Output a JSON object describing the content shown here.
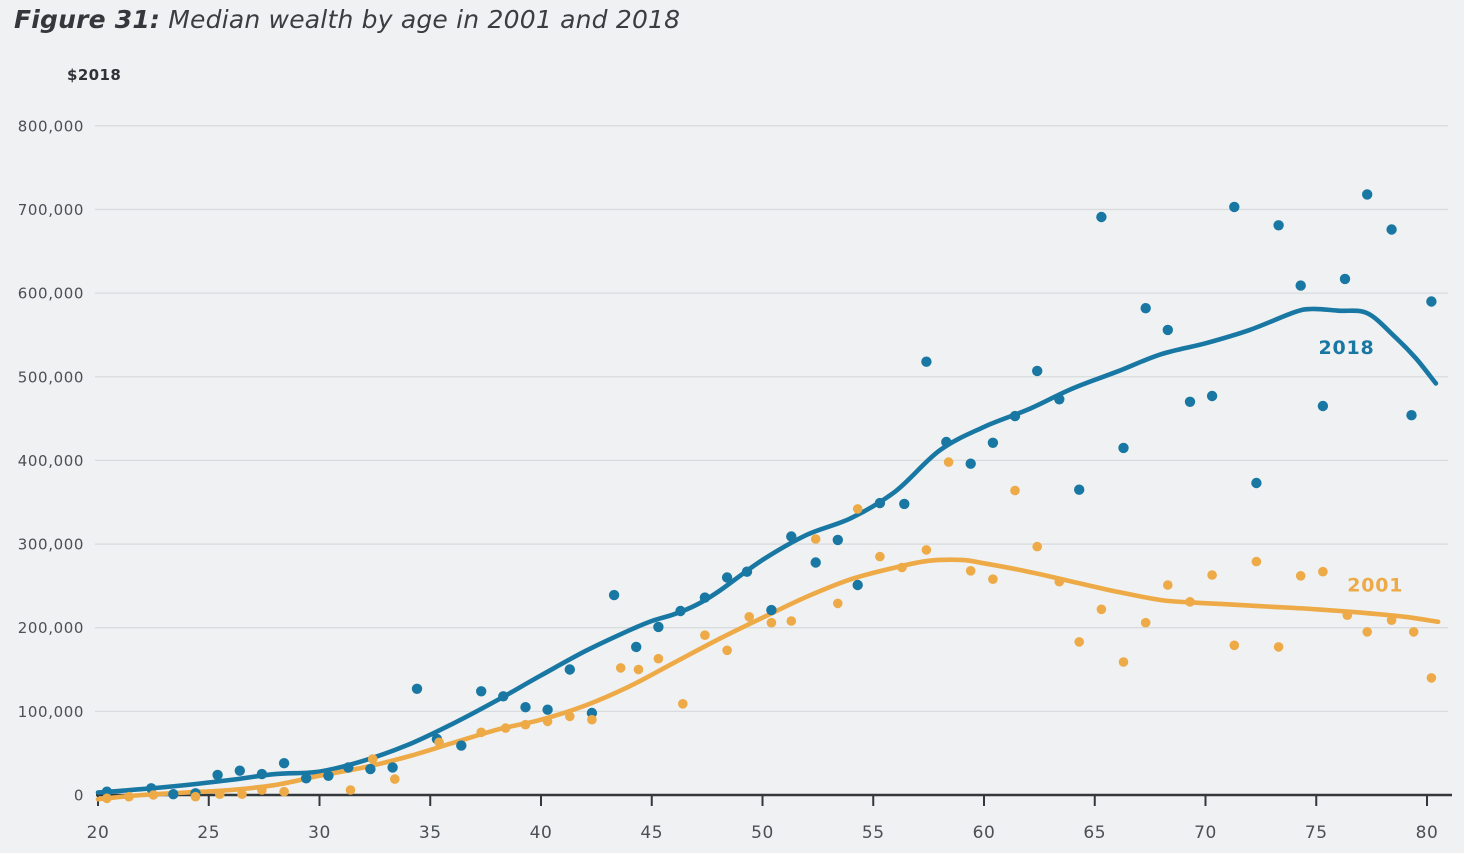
{
  "page": {
    "title_prefix": "Figure 31:",
    "title_rest": " Median wealth by age in 2001 and 2018",
    "y_unit_label": "$2018",
    "background": "#eff1f2"
  },
  "chart_data": {
    "type": "scatter",
    "title": "Figure 31: Median wealth by age in 2001 and 2018",
    "xlabel": "",
    "ylabel": "$2018",
    "xlim": [
      19.5,
      81.7
    ],
    "ylim": [
      0,
      800000
    ],
    "x_ticks": [
      20,
      25,
      30,
      35,
      40,
      45,
      50,
      55,
      60,
      65,
      70,
      75,
      80
    ],
    "y_ticks": [
      0,
      100000,
      200000,
      300000,
      400000,
      500000,
      600000,
      700000,
      800000
    ],
    "grid": "horizontal-only",
    "legend_position": "inline-labels",
    "colors": {
      "s2018": "#1878a3",
      "s2001": "#edaa47",
      "grid": "#d9dcde",
      "axis": "#33383d",
      "tick_text": "#4b5056"
    },
    "series": [
      {
        "name": "2018",
        "color": "#1878a3",
        "label_anchor": {
          "age": 75.1,
          "value": 527000
        },
        "points": [
          [
            20.4,
            4000
          ],
          [
            22.4,
            8000
          ],
          [
            23.4,
            1000
          ],
          [
            24.4,
            2000
          ],
          [
            25.4,
            24000
          ],
          [
            26.4,
            29000
          ],
          [
            27.4,
            25000
          ],
          [
            28.4,
            38000
          ],
          [
            29.4,
            20000
          ],
          [
            30.4,
            23000
          ],
          [
            31.3,
            33000
          ],
          [
            32.3,
            31000
          ],
          [
            33.3,
            33000
          ],
          [
            34.4,
            127000
          ],
          [
            35.3,
            67000
          ],
          [
            36.4,
            59000
          ],
          [
            37.3,
            124000
          ],
          [
            38.3,
            118000
          ],
          [
            39.3,
            105000
          ],
          [
            40.3,
            102000
          ],
          [
            41.3,
            150000
          ],
          [
            42.3,
            98000
          ],
          [
            43.3,
            239000
          ],
          [
            44.3,
            177000
          ],
          [
            45.3,
            201000
          ],
          [
            46.3,
            220000
          ],
          [
            47.4,
            236000
          ],
          [
            48.4,
            260000
          ],
          [
            49.3,
            267000
          ],
          [
            50.4,
            221000
          ],
          [
            51.3,
            309000
          ],
          [
            52.4,
            278000
          ],
          [
            53.4,
            305000
          ],
          [
            54.3,
            251000
          ],
          [
            55.3,
            349000
          ],
          [
            56.4,
            348000
          ],
          [
            57.4,
            518000
          ],
          [
            58.3,
            422000
          ],
          [
            59.4,
            396000
          ],
          [
            60.4,
            421000
          ],
          [
            61.4,
            453000
          ],
          [
            62.4,
            507000
          ],
          [
            63.4,
            473000
          ],
          [
            64.3,
            365000
          ],
          [
            65.3,
            691000
          ],
          [
            66.3,
            415000
          ],
          [
            67.3,
            582000
          ],
          [
            68.3,
            556000
          ],
          [
            69.3,
            470000
          ],
          [
            70.3,
            477000
          ],
          [
            71.3,
            703000
          ],
          [
            72.3,
            373000
          ],
          [
            73.3,
            681000
          ],
          [
            74.3,
            609000
          ],
          [
            75.3,
            465000
          ],
          [
            76.3,
            617000
          ],
          [
            77.3,
            718000
          ],
          [
            78.4,
            676000
          ],
          [
            79.3,
            454000
          ],
          [
            80.2,
            590000
          ]
        ],
        "trend": [
          [
            20,
            3000
          ],
          [
            22,
            7000
          ],
          [
            24,
            12000
          ],
          [
            26,
            18000
          ],
          [
            28,
            25000
          ],
          [
            30,
            28000
          ],
          [
            32,
            41000
          ],
          [
            34,
            60000
          ],
          [
            36,
            85000
          ],
          [
            38,
            113000
          ],
          [
            40,
            143000
          ],
          [
            42,
            172000
          ],
          [
            44,
            197000
          ],
          [
            45,
            208000
          ],
          [
            46,
            216000
          ],
          [
            47,
            227000
          ],
          [
            48,
            243000
          ],
          [
            50,
            281000
          ],
          [
            52,
            311000
          ],
          [
            54,
            331000
          ],
          [
            56,
            363000
          ],
          [
            58,
            412000
          ],
          [
            60,
            440000
          ],
          [
            62,
            461000
          ],
          [
            64,
            486000
          ],
          [
            66,
            506000
          ],
          [
            68,
            527000
          ],
          [
            70,
            540000
          ],
          [
            72,
            556000
          ],
          [
            74,
            577000
          ],
          [
            74.8,
            581000
          ],
          [
            76,
            579000
          ],
          [
            77.3,
            576000
          ],
          [
            78.5,
            549000
          ],
          [
            79.5,
            522000
          ],
          [
            80.4,
            492000
          ]
        ]
      },
      {
        "name": "2001",
        "color": "#edaa47",
        "label_anchor": {
          "age": 76.4,
          "value": 243000
        },
        "points": [
          [
            20.4,
            -4000
          ],
          [
            21.4,
            -2000
          ],
          [
            22.5,
            0
          ],
          [
            24.4,
            -2000
          ],
          [
            25.5,
            1000
          ],
          [
            26.5,
            1000
          ],
          [
            27.4,
            6000
          ],
          [
            28.4,
            4000
          ],
          [
            31.4,
            6000
          ],
          [
            32.4,
            43000
          ],
          [
            33.4,
            19000
          ],
          [
            35.4,
            63000
          ],
          [
            37.3,
            75000
          ],
          [
            38.4,
            80000
          ],
          [
            39.3,
            84000
          ],
          [
            40.3,
            88000
          ],
          [
            41.3,
            94000
          ],
          [
            42.3,
            90000
          ],
          [
            43.6,
            152000
          ],
          [
            44.4,
            150000
          ],
          [
            45.3,
            163000
          ],
          [
            46.4,
            109000
          ],
          [
            47.4,
            191000
          ],
          [
            48.4,
            173000
          ],
          [
            49.4,
            213000
          ],
          [
            50.4,
            206000
          ],
          [
            51.3,
            208000
          ],
          [
            52.4,
            306000
          ],
          [
            53.4,
            229000
          ],
          [
            54.3,
            342000
          ],
          [
            55.3,
            285000
          ],
          [
            56.3,
            272000
          ],
          [
            57.4,
            293000
          ],
          [
            58.4,
            398000
          ],
          [
            59.4,
            268000
          ],
          [
            60.4,
            258000
          ],
          [
            61.4,
            364000
          ],
          [
            62.4,
            297000
          ],
          [
            63.4,
            255000
          ],
          [
            64.3,
            183000
          ],
          [
            65.3,
            222000
          ],
          [
            66.3,
            159000
          ],
          [
            67.3,
            206000
          ],
          [
            68.3,
            251000
          ],
          [
            69.3,
            231000
          ],
          [
            70.3,
            263000
          ],
          [
            71.3,
            179000
          ],
          [
            72.3,
            279000
          ],
          [
            73.3,
            177000
          ],
          [
            74.3,
            262000
          ],
          [
            75.3,
            267000
          ],
          [
            76.4,
            215000
          ],
          [
            77.3,
            195000
          ],
          [
            78.4,
            209000
          ],
          [
            79.4,
            195000
          ],
          [
            80.2,
            140000
          ]
        ],
        "trend": [
          [
            20,
            -5000
          ],
          [
            22,
            0
          ],
          [
            24,
            3000
          ],
          [
            26,
            6000
          ],
          [
            28,
            12000
          ],
          [
            30,
            23000
          ],
          [
            32,
            33000
          ],
          [
            34,
            46000
          ],
          [
            36,
            62000
          ],
          [
            38,
            78000
          ],
          [
            40,
            90000
          ],
          [
            42,
            107000
          ],
          [
            44,
            130000
          ],
          [
            46,
            158000
          ],
          [
            48,
            186000
          ],
          [
            50,
            212000
          ],
          [
            52,
            237000
          ],
          [
            54,
            258000
          ],
          [
            56,
            272000
          ],
          [
            57.5,
            280000
          ],
          [
            59,
            281000
          ],
          [
            60,
            277000
          ],
          [
            62,
            267000
          ],
          [
            64,
            255000
          ],
          [
            66,
            243000
          ],
          [
            68,
            233000
          ],
          [
            69.5,
            230000
          ],
          [
            71,
            228000
          ],
          [
            73,
            225000
          ],
          [
            75,
            222000
          ],
          [
            77,
            218000
          ],
          [
            79,
            213000
          ],
          [
            80.5,
            207000
          ]
        ]
      }
    ]
  }
}
